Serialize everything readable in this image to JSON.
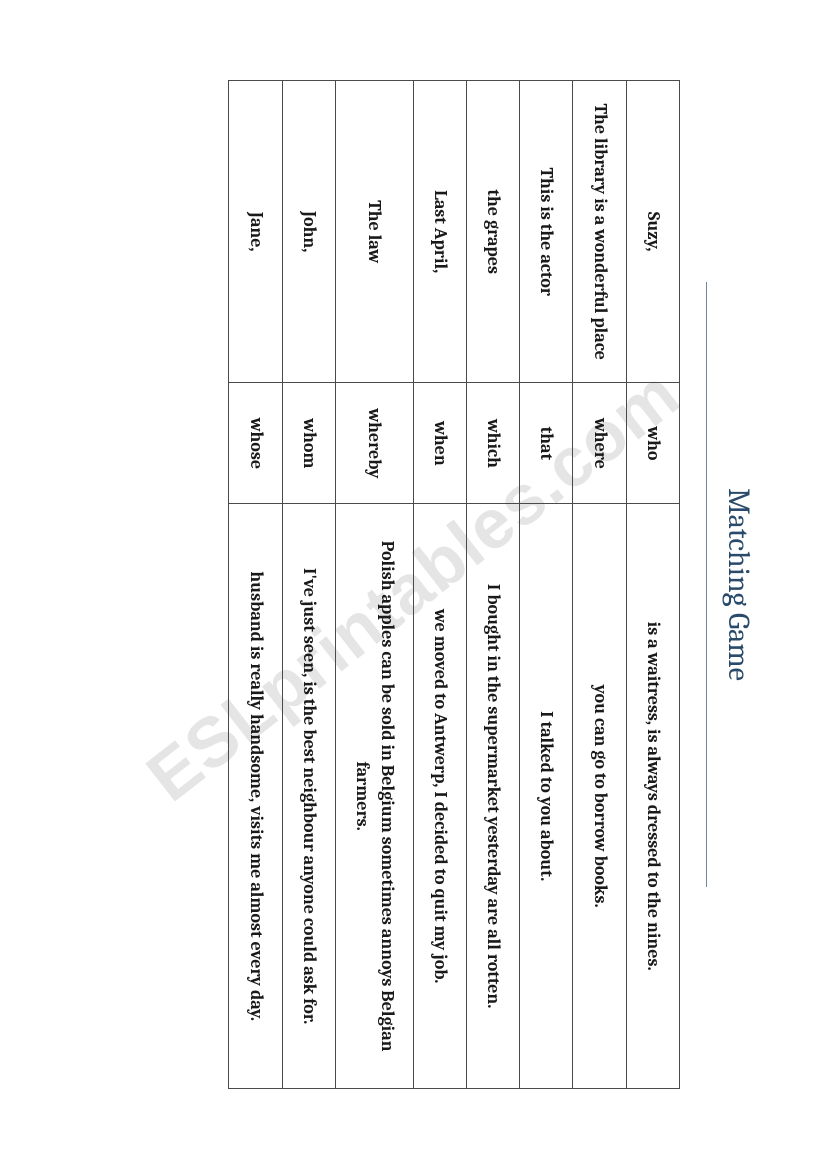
{
  "title": "Matching Game",
  "watermark": "ESLprintables.com",
  "table": {
    "rows": [
      {
        "a": "Suzy,",
        "b": "who",
        "c": "is a waitress,  is always dressed to the nines."
      },
      {
        "a": "The library is a wonderful place",
        "b": "where",
        "c": "you can go to borrow books."
      },
      {
        "a": "This is the actor",
        "b": "that",
        "c": "I talked to you about."
      },
      {
        "a": "the grapes",
        "b": "which",
        "c": "I bought in the supermarket yesterday are all rotten."
      },
      {
        "a": "Last April,",
        "b": "when",
        "c": "we moved to Antwerp, I decided to quit my job."
      },
      {
        "a": "The law",
        "b": "whereby",
        "c": "Polish apples can be sold in Belgium sometimes annoys Belgian farmers."
      },
      {
        "a": "John,",
        "b": "whom",
        "c": "I've just seen, is the best neighbour anyone could ask for."
      },
      {
        "a": "Jane,",
        "b": "whose",
        "c": "husband is really handsome, visits me almost every day."
      }
    ]
  }
}
